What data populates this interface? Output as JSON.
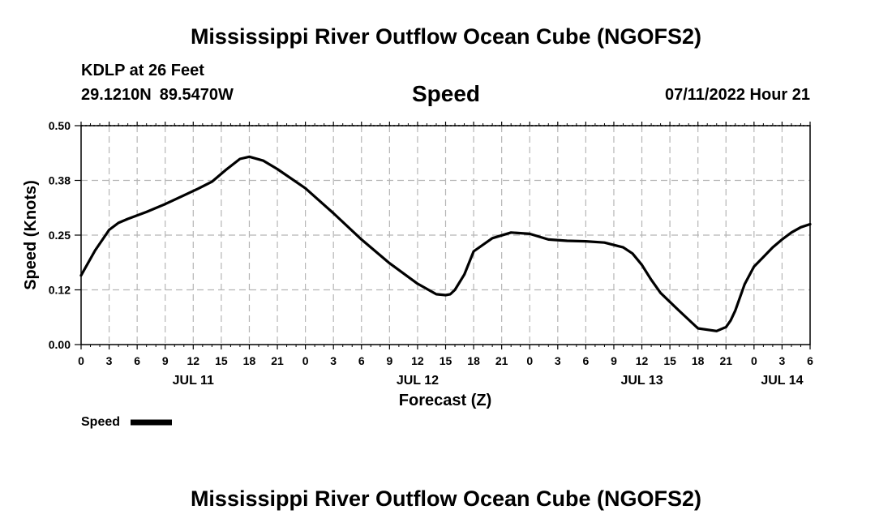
{
  "header": {
    "title": "Mississippi River Outflow Ocean Cube (NGOFS2)",
    "station": "KDLP at 26 Feet",
    "lat": "29.1210N",
    "lon": "89.5470W",
    "variable": "Speed",
    "datetime": "07/11/2022 Hour 21"
  },
  "footer": {
    "title": "Mississippi River Outflow Ocean Cube (NGOFS2)"
  },
  "chart_data": {
    "type": "line",
    "title": "Speed",
    "xlabel": "Forecast (Z)",
    "ylabel": "Speed (Knots)",
    "xlim": [
      0,
      78
    ],
    "ylim": [
      0,
      0.5
    ],
    "grid": true,
    "yticks": [
      "0.00",
      "0.12",
      "0.25",
      "0.38",
      "0.50"
    ],
    "xtick_labels": [
      "0",
      "3",
      "6",
      "9",
      "12",
      "15",
      "18",
      "21",
      "0",
      "3",
      "6",
      "9",
      "12",
      "15",
      "18",
      "21",
      "0",
      "3",
      "6",
      "9",
      "12",
      "15",
      "18",
      "21",
      "0",
      "3",
      "6"
    ],
    "day_labels": [
      {
        "label": "JUL 11",
        "hour": 12
      },
      {
        "label": "JUL 12",
        "hour": 36
      },
      {
        "label": "JUL 13",
        "hour": 60
      },
      {
        "label": "JUL 14",
        "hour": 75
      }
    ],
    "legend": {
      "label": "Speed",
      "position": "bottom-left"
    },
    "series": [
      {
        "name": "Speed",
        "color": "#000000",
        "x": [
          0,
          1.5,
          3,
          4,
          5,
          7,
          9,
          11,
          12.5,
          14,
          15.5,
          17,
          18,
          19.5,
          21,
          24,
          27,
          30,
          33,
          36,
          38,
          39,
          39.5,
          40,
          41,
          42,
          44,
          46,
          48,
          50,
          52,
          54,
          56,
          58,
          59,
          60,
          61,
          62,
          64,
          66,
          68,
          69,
          69.5,
          70,
          71,
          72,
          73,
          74,
          75,
          76,
          77,
          78
        ],
        "values": [
          0.158,
          0.215,
          0.262,
          0.278,
          0.287,
          0.303,
          0.321,
          0.341,
          0.356,
          0.372,
          0.399,
          0.424,
          0.429,
          0.42,
          0.401,
          0.357,
          0.3,
          0.24,
          0.186,
          0.139,
          0.115,
          0.113,
          0.115,
          0.125,
          0.16,
          0.213,
          0.243,
          0.256,
          0.253,
          0.24,
          0.237,
          0.236,
          0.233,
          0.222,
          0.208,
          0.182,
          0.148,
          0.118,
          0.077,
          0.037,
          0.031,
          0.04,
          0.055,
          0.078,
          0.138,
          0.178,
          0.2,
          0.222,
          0.24,
          0.256,
          0.268,
          0.275
        ]
      }
    ]
  }
}
